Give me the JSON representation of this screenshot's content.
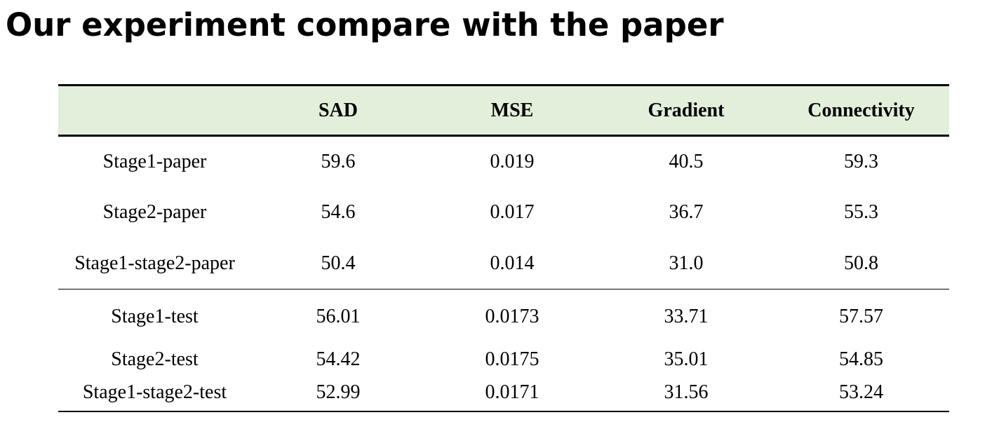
{
  "title": "Our experiment compare with the paper",
  "table": {
    "columns": [
      "",
      "SAD",
      "MSE",
      "Gradient",
      "Connectivity"
    ],
    "rows": [
      [
        "Stage1-paper",
        "59.6",
        "0.019",
        "40.5",
        "59.3"
      ],
      [
        "Stage2-paper",
        "54.6",
        "0.017",
        "36.7",
        "55.3"
      ],
      [
        "Stage1-stage2-paper",
        "50.4",
        "0.014",
        "31.0",
        "50.8"
      ],
      [
        "Stage1-test",
        "56.01",
        "0.0173",
        "33.71",
        "57.57"
      ],
      [
        "Stage2-test",
        "54.42",
        "0.0175",
        "35.01",
        "54.85"
      ],
      [
        "Stage1-stage2-test",
        "52.99",
        "0.0171",
        "31.56",
        "53.24"
      ]
    ]
  },
  "colors": {
    "header_background": "#e2efda",
    "rule": "#000000",
    "text": "#000000"
  }
}
